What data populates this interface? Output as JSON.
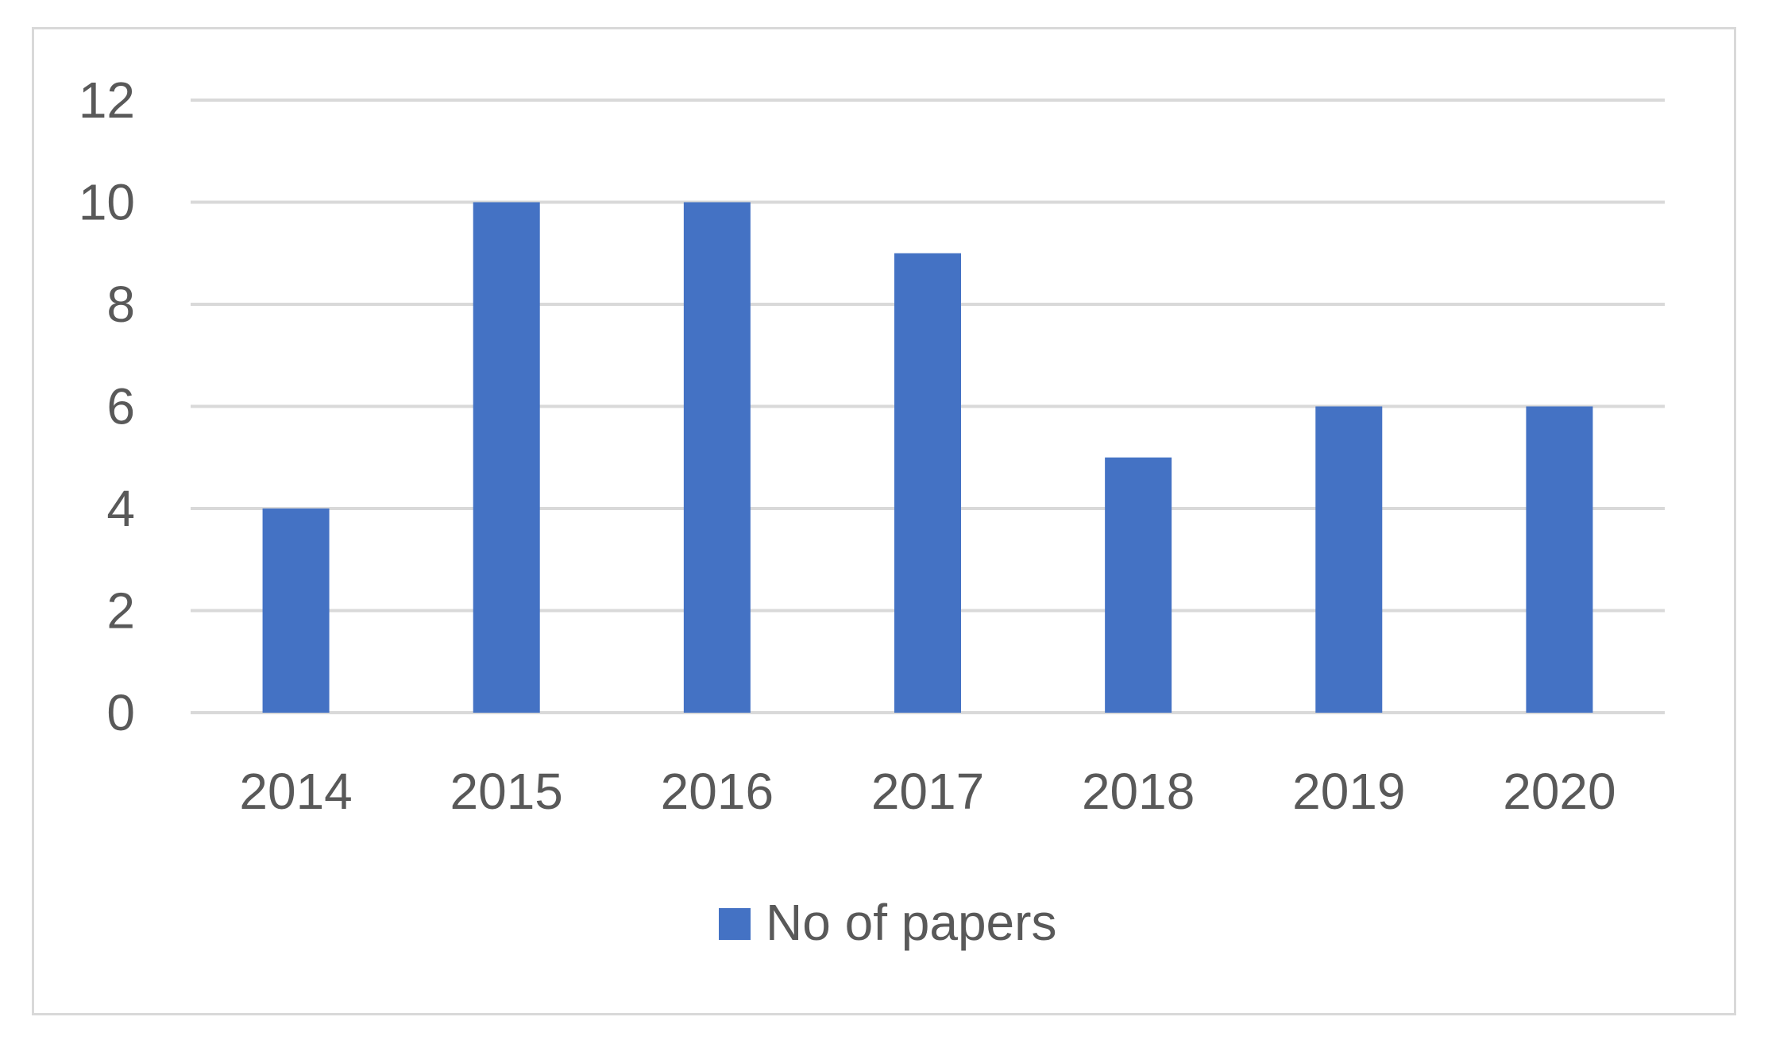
{
  "chart_data": {
    "type": "bar",
    "title": "",
    "xlabel": "",
    "ylabel": "",
    "categories": [
      "2014",
      "2015",
      "2016",
      "2017",
      "2018",
      "2019",
      "2020"
    ],
    "series": [
      {
        "name": "No of papers",
        "values": [
          4,
          10,
          10,
          9,
          5,
          6,
          6
        ],
        "color": "#4472c4"
      }
    ],
    "ylim": [
      0,
      12
    ],
    "yticks": [
      0,
      2,
      4,
      6,
      8,
      10,
      12
    ],
    "ytick_labels": [
      "0",
      "2",
      "4",
      "6",
      "8",
      "10",
      "12"
    ],
    "grid": true,
    "grid_color": "#d9d9d9",
    "legend": {
      "position": "bottom",
      "labels": [
        "No of papers"
      ]
    }
  }
}
